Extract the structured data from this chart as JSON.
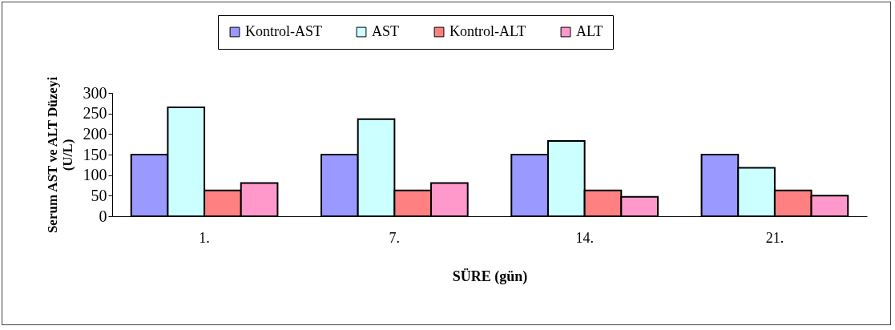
{
  "chart_data": {
    "type": "bar",
    "xlabel": "SÜRE (gün)",
    "ylabel": "Serum AST ve ALT Düzeyi (U/L)",
    "categories": [
      "1.",
      "7.",
      "14.",
      "21."
    ],
    "series": [
      {
        "name": "Kontrol-AST",
        "color": "#9999ff",
        "values": [
          150,
          150,
          150,
          150
        ]
      },
      {
        "name": "AST",
        "color": "#ccffff",
        "values": [
          265,
          236,
          183,
          118
        ]
      },
      {
        "name": "Kontrol-ALT",
        "color": "#ff8080",
        "values": [
          63,
          63,
          63,
          63
        ]
      },
      {
        "name": "ALT",
        "color": "#ff99cc",
        "values": [
          81,
          81,
          47,
          50
        ]
      }
    ],
    "ylim": [
      0,
      300
    ],
    "yticks": [
      0,
      50,
      100,
      150,
      200,
      250,
      300
    ],
    "legend": "top"
  }
}
